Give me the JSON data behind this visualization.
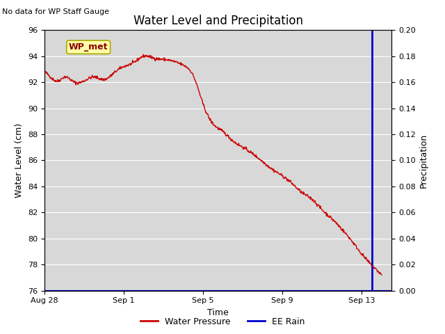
{
  "title": "Water Level and Precipitation",
  "subtitle": "No data for WP Staff Gauge",
  "xlabel": "Time",
  "ylabel_left": "Water Level (cm)",
  "ylabel_right": "Precipitation",
  "legend_label_red": "Water Pressure",
  "legend_label_blue": "EE Rain",
  "wp_met_label": "WP_met",
  "ylim_left": [
    76,
    96
  ],
  "ylim_right": [
    0.0,
    0.2
  ],
  "yticks_left": [
    76,
    78,
    80,
    82,
    84,
    86,
    88,
    90,
    92,
    94,
    96
  ],
  "yticks_right": [
    0.0,
    0.02,
    0.04,
    0.06,
    0.08,
    0.1,
    0.12,
    0.14,
    0.16,
    0.18,
    0.2
  ],
  "xtick_labels": [
    "Aug 28",
    "Sep 1",
    "Sep 5",
    "Sep 9",
    "Sep 13"
  ],
  "xtick_positions": [
    0,
    4,
    8,
    12,
    16
  ],
  "vertical_line_x": 16.5,
  "fig_bg_color": "#ffffff",
  "plot_bg_color": "#d8d8d8",
  "grid_color": "#ffffff",
  "line_color_red": "#cc0000",
  "line_color_blue": "#0000cc",
  "title_fontsize": 12,
  "label_fontsize": 9,
  "tick_fontsize": 8,
  "legend_fontsize": 9,
  "subtitle_fontsize": 8,
  "wp_met_fontsize": 9,
  "wp_met_color": "#8B0000",
  "wp_met_bg": "#ffffaa",
  "wp_met_edge": "#aaaa00"
}
